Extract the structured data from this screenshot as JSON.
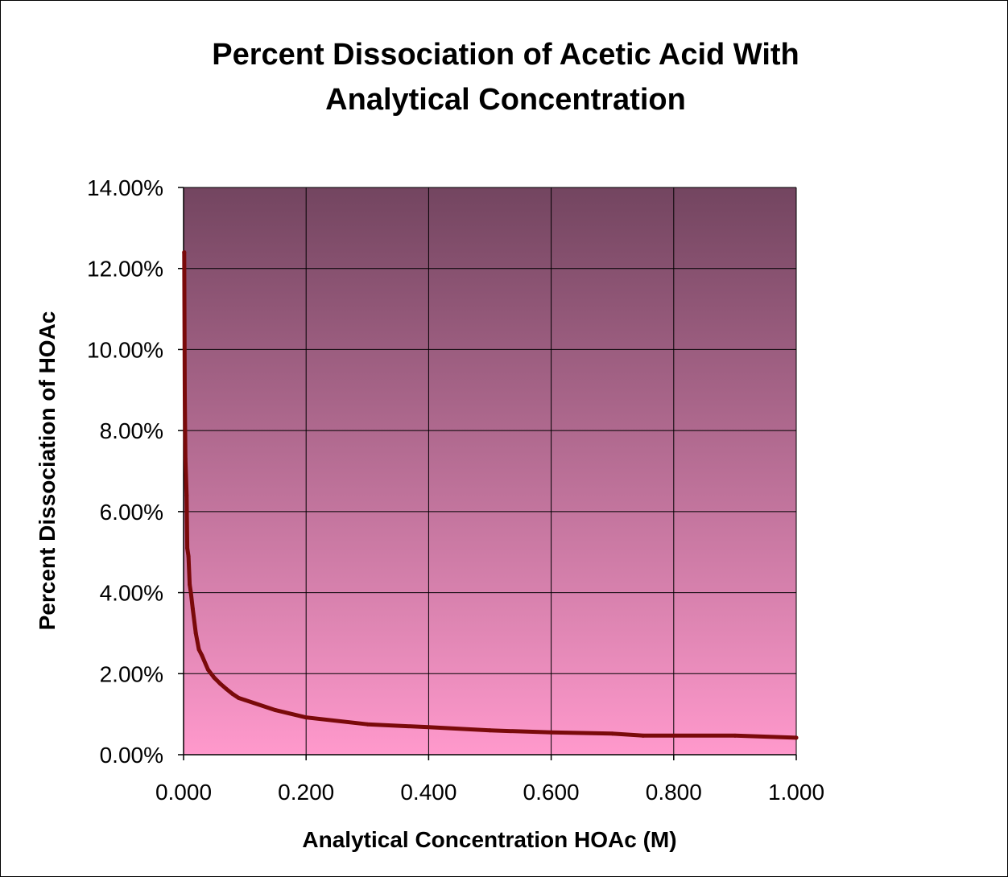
{
  "chart_data": {
    "type": "line",
    "title_lines": [
      "Percent Dissociation of Acetic Acid With",
      "Analytical Concentration"
    ],
    "xlabel": "Analytical Concentration HOAc (M)",
    "ylabel": "Percent Dissociation of HOAc",
    "xlim": [
      0,
      1
    ],
    "ylim": [
      0,
      14
    ],
    "x_ticks": [
      0,
      0.2,
      0.4,
      0.6,
      0.8,
      1.0
    ],
    "x_tick_labels": [
      "0.000",
      "0.200",
      "0.400",
      "0.600",
      "0.800",
      "1.000"
    ],
    "y_ticks": [
      0,
      2,
      4,
      6,
      8,
      10,
      12,
      14
    ],
    "y_tick_labels": [
      "0.00%",
      "2.00%",
      "4.00%",
      "6.00%",
      "8.00%",
      "10.00%",
      "12.00%",
      "14.00%"
    ],
    "grid": true,
    "legend": "none",
    "colors": {
      "line": "#7a0a0a",
      "plot_top": "#734560",
      "plot_bottom": "#ff99cc",
      "grid": "#000000"
    },
    "series": [
      {
        "x": [
          0.001,
          0.002,
          0.003,
          0.004,
          0.005,
          0.006,
          0.008,
          0.01,
          0.012,
          0.015,
          0.02,
          0.025,
          0.03,
          0.04,
          0.05,
          0.06,
          0.07,
          0.08,
          0.09,
          0.1,
          0.15,
          0.2,
          0.3,
          0.4,
          0.5,
          0.6,
          0.7,
          0.75,
          0.8,
          0.9,
          1.0
        ],
        "y": [
          12.4,
          8.9,
          7.3,
          6.9,
          6.4,
          5.1,
          4.9,
          4.2,
          4.0,
          3.6,
          3.0,
          2.6,
          2.45,
          2.1,
          1.9,
          1.75,
          1.62,
          1.5,
          1.4,
          1.35,
          1.1,
          0.92,
          0.75,
          0.68,
          0.6,
          0.55,
          0.52,
          0.47,
          0.47,
          0.47,
          0.42
        ]
      }
    ]
  }
}
